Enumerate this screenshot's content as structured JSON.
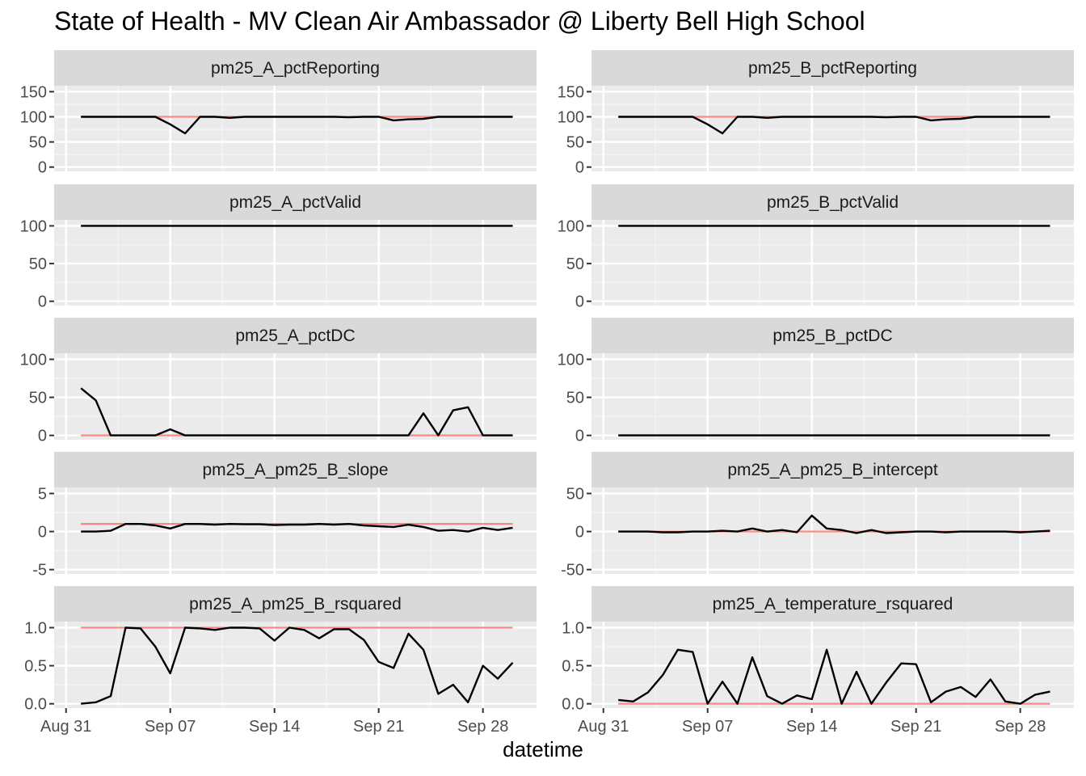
{
  "chart_data": {
    "type": "line",
    "title": "State of Health - MV Clean Air Ambassador @ Liberty Bell High School",
    "xlabel": "datetime",
    "ylabel": "",
    "x_tick_labels": [
      "Aug 31",
      "Sep 07",
      "Sep 14",
      "Sep 21",
      "Sep 28"
    ],
    "x": [
      "2020-09-01",
      "2020-09-02",
      "2020-09-03",
      "2020-09-04",
      "2020-09-05",
      "2020-09-06",
      "2020-09-07",
      "2020-09-08",
      "2020-09-09",
      "2020-09-10",
      "2020-09-11",
      "2020-09-12",
      "2020-09-13",
      "2020-09-14",
      "2020-09-15",
      "2020-09-16",
      "2020-09-17",
      "2020-09-18",
      "2020-09-19",
      "2020-09-20",
      "2020-09-21",
      "2020-09-22",
      "2020-09-23",
      "2020-09-24",
      "2020-09-25",
      "2020-09-26",
      "2020-09-27",
      "2020-09-28",
      "2020-09-29",
      "2020-09-30"
    ],
    "facets": [
      {
        "name": "pm25_A_pctReporting",
        "ylim": [
          0,
          150
        ],
        "y_ticks": [
          0,
          50,
          100,
          150
        ],
        "y_tick_labels": [
          "0",
          "50",
          "100",
          "150"
        ],
        "reference": 100,
        "values": [
          100,
          100,
          100,
          100,
          100,
          100,
          85,
          67,
          100,
          100,
          98,
          100,
          100,
          100,
          100,
          100,
          100,
          100,
          99,
          100,
          100,
          93,
          95,
          96,
          100,
          100,
          100,
          100,
          100,
          100
        ]
      },
      {
        "name": "pm25_B_pctReporting",
        "ylim": [
          0,
          150
        ],
        "y_ticks": [
          0,
          50,
          100,
          150
        ],
        "y_tick_labels": [
          "0",
          "50",
          "100",
          "150"
        ],
        "reference": 100,
        "values": [
          100,
          100,
          100,
          100,
          100,
          100,
          85,
          67,
          100,
          100,
          98,
          100,
          100,
          100,
          100,
          100,
          100,
          100,
          99,
          100,
          100,
          93,
          95,
          96,
          100,
          100,
          100,
          100,
          100,
          100
        ]
      },
      {
        "name": "pm25_A_pctValid",
        "ylim": [
          0,
          100
        ],
        "y_ticks": [
          0,
          50,
          100
        ],
        "y_tick_labels": [
          "0",
          "50",
          "100"
        ],
        "reference": 100,
        "values": [
          100,
          100,
          100,
          100,
          100,
          100,
          100,
          100,
          100,
          100,
          100,
          100,
          100,
          100,
          100,
          100,
          100,
          100,
          100,
          100,
          100,
          100,
          100,
          100,
          100,
          100,
          100,
          100,
          100,
          100
        ]
      },
      {
        "name": "pm25_B_pctValid",
        "ylim": [
          0,
          100
        ],
        "y_ticks": [
          0,
          50,
          100
        ],
        "y_tick_labels": [
          "0",
          "50",
          "100"
        ],
        "reference": 100,
        "values": [
          100,
          100,
          100,
          100,
          100,
          100,
          100,
          100,
          100,
          100,
          100,
          100,
          100,
          100,
          100,
          100,
          100,
          100,
          100,
          100,
          100,
          100,
          100,
          100,
          100,
          100,
          100,
          100,
          100,
          100
        ]
      },
      {
        "name": "pm25_A_pctDC",
        "ylim": [
          0,
          100
        ],
        "y_ticks": [
          0,
          50,
          100
        ],
        "y_tick_labels": [
          "0",
          "50",
          "100"
        ],
        "reference": 0,
        "values": [
          62,
          46,
          0,
          0,
          0,
          0,
          8,
          0,
          0,
          0,
          0,
          0,
          0,
          0,
          0,
          0,
          0,
          0,
          0,
          0,
          0,
          0,
          0,
          29,
          0,
          33,
          37,
          0,
          0,
          0
        ]
      },
      {
        "name": "pm25_B_pctDC",
        "ylim": [
          0,
          100
        ],
        "y_ticks": [
          0,
          50,
          100
        ],
        "y_tick_labels": [
          "0",
          "50",
          "100"
        ],
        "reference": 0,
        "values": [
          0,
          0,
          0,
          0,
          0,
          0,
          0,
          0,
          0,
          0,
          0,
          0,
          0,
          0,
          0,
          0,
          0,
          0,
          0,
          0,
          0,
          0,
          0,
          0,
          0,
          0,
          0,
          0,
          0,
          0
        ]
      },
      {
        "name": "pm25_A_pm25_B_slope",
        "ylim": [
          -5,
          5
        ],
        "y_ticks": [
          -5,
          0,
          5
        ],
        "y_tick_labels": [
          "-5",
          "0",
          "5"
        ],
        "reference": 1,
        "values": [
          0,
          0,
          0.1,
          1,
          1,
          0.8,
          0.4,
          1,
          1,
          0.9,
          1,
          0.95,
          0.95,
          0.85,
          0.9,
          0.9,
          1,
          0.9,
          1,
          0.8,
          0.7,
          0.6,
          0.9,
          0.6,
          0.1,
          0.2,
          0,
          0.5,
          0.2,
          0.5
        ]
      },
      {
        "name": "pm25_A_pm25_B_intercept",
        "ylim": [
          -50,
          50
        ],
        "y_ticks": [
          -50,
          0,
          50
        ],
        "y_tick_labels": [
          "-50",
          "0",
          "50"
        ],
        "reference": 0,
        "values": [
          0,
          0,
          0,
          -1,
          -1,
          0,
          0,
          1,
          0,
          4,
          0,
          2,
          -1,
          21,
          4,
          2,
          -2,
          2,
          -2,
          -1,
          0,
          0,
          -1,
          0,
          0,
          0,
          0,
          -1,
          0,
          1
        ]
      },
      {
        "name": "pm25_A_pm25_B_rsquared",
        "ylim": [
          0,
          1
        ],
        "y_ticks": [
          0,
          0.5,
          1
        ],
        "y_tick_labels": [
          "0.0",
          "0.5",
          "1.0"
        ],
        "reference": 1,
        "values": [
          0,
          0.02,
          0.1,
          1,
          0.99,
          0.75,
          0.4,
          1,
          0.99,
          0.97,
          1,
          1,
          0.99,
          0.83,
          1,
          0.97,
          0.86,
          0.98,
          0.98,
          0.84,
          0.55,
          0.47,
          0.92,
          0.71,
          0.13,
          0.25,
          0.02,
          0.5,
          0.33,
          0.54
        ]
      },
      {
        "name": "pm25_A_temperature_rsquared",
        "ylim": [
          0,
          1
        ],
        "y_ticks": [
          0,
          0.5,
          1
        ],
        "y_tick_labels": [
          "0.0",
          "0.5",
          "1.0"
        ],
        "reference": 0,
        "values": [
          0.05,
          0.03,
          0.15,
          0.38,
          0.71,
          0.68,
          0,
          0.29,
          0,
          0.61,
          0.1,
          0,
          0.11,
          0.06,
          0.71,
          0,
          0.42,
          0,
          0.28,
          0.53,
          0.52,
          0.02,
          0.16,
          0.22,
          0.09,
          0.32,
          0.03,
          0,
          0.12,
          0.16
        ]
      }
    ]
  }
}
